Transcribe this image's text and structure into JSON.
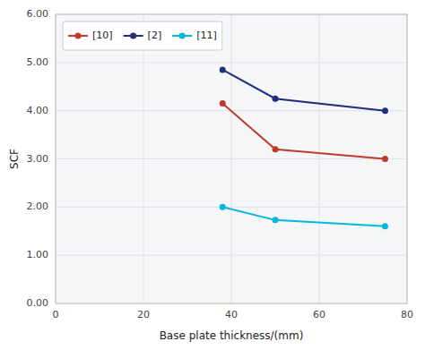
{
  "chart_data": {
    "type": "line",
    "x": [
      38,
      50,
      75
    ],
    "series": [
      {
        "name": "[10]",
        "color": "#c0392b",
        "marker": "circle",
        "values": [
          4.15,
          3.2,
          3.0
        ]
      },
      {
        "name": "[2]",
        "color": "#1f2d7b",
        "marker": "circle",
        "values": [
          4.85,
          4.25,
          4.0
        ]
      },
      {
        "name": "[11]",
        "color": "#00b8d9",
        "marker": "circle",
        "values": [
          2.0,
          1.73,
          1.6
        ]
      }
    ],
    "xlim": [
      0,
      80
    ],
    "ylim": [
      0.0,
      6.0
    ],
    "xticks": [
      0,
      20,
      40,
      60,
      80
    ],
    "yticks": [
      {
        "value": 0,
        "label": "0.00"
      },
      {
        "value": 1,
        "label": "1.00"
      },
      {
        "value": 2,
        "label": "2.00"
      },
      {
        "value": 3,
        "label": "3.00"
      },
      {
        "value": 4,
        "label": "4.00"
      },
      {
        "value": 5,
        "label": "5.00"
      },
      {
        "value": 6,
        "label": "6.00"
      }
    ],
    "xlabel": "Base plate thickness/(mm)",
    "ylabel": "SCF",
    "grid": true,
    "legend": "upper-left"
  }
}
